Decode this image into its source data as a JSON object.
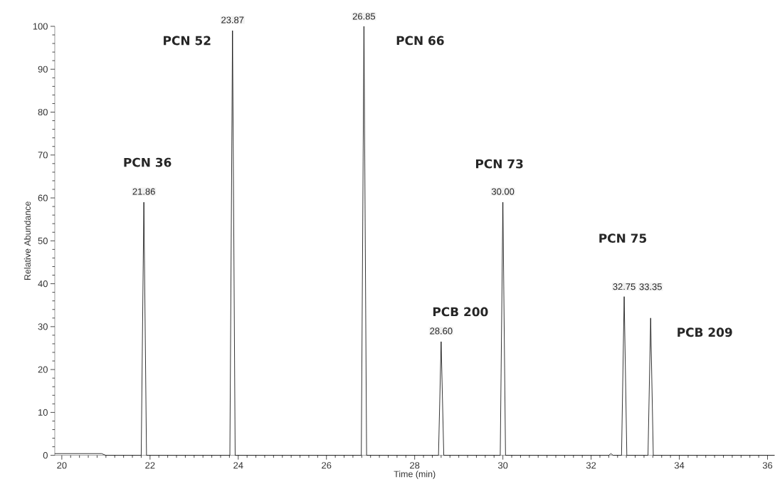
{
  "chart_data": {
    "type": "line",
    "xlabel": "Time (min)",
    "ylabel": "Relative Abundance",
    "xlim": [
      19.84,
      36.16
    ],
    "ylim": [
      0,
      100
    ],
    "xticks": [
      20,
      22,
      24,
      26,
      28,
      30,
      32,
      34,
      36
    ],
    "yticks": [
      0,
      10,
      20,
      30,
      40,
      50,
      60,
      70,
      80,
      90,
      100
    ],
    "grid": false,
    "marker": "none",
    "line_style": "solid",
    "series": [
      {
        "color": "#000000",
        "x": [
          19.84,
          20.9,
          21.0,
          21.8,
          21.86,
          21.92,
          23.81,
          23.87,
          23.93,
          26.79,
          26.85,
          26.91,
          28.54,
          28.6,
          28.66,
          29.94,
          30.0,
          30.06,
          32.4,
          32.45,
          32.5,
          32.69,
          32.75,
          32.81,
          33.29,
          33.35,
          33.41,
          36.16
        ],
        "values": [
          0.4,
          0.4,
          0,
          0,
          59,
          0,
          0,
          99,
          0,
          0,
          100,
          0,
          0,
          26.5,
          0,
          0,
          59,
          0,
          0,
          0.4,
          0,
          0,
          37,
          0,
          0,
          32,
          0,
          0
        ]
      }
    ],
    "annotations": [
      {
        "text": "21.86",
        "x": 21.86,
        "y": 59
      },
      {
        "text": "23.87",
        "x": 23.87,
        "y": 99
      },
      {
        "text": "26.85",
        "x": 26.85,
        "y": 100
      },
      {
        "text": "28.60",
        "x": 28.6,
        "y": 26.5
      },
      {
        "text": "30.00",
        "x": 30.0,
        "y": 59
      },
      {
        "text": "32.75",
        "x": 32.75,
        "y": 37
      },
      {
        "text": "33.35",
        "x": 33.35,
        "y": 39.3
      },
      {
        "text": "**PCN 36**",
        "x": 21.86,
        "y": 59
      },
      {
        "text": "**PCN 52**",
        "x": 23.87,
        "y": 99
      },
      {
        "text": "**PCN 66**",
        "x": 26.85,
        "y": 100
      },
      {
        "text": "**PCB 200**",
        "x": 28.6,
        "y": 26.5
      },
      {
        "text": "**PCN 73**",
        "x": 30.0,
        "y": 59
      },
      "**PCN 75**",
      {
        "text": "**PCB 209**",
        "x": 33.35,
        "y": 32
      }
    ]
  }
}
